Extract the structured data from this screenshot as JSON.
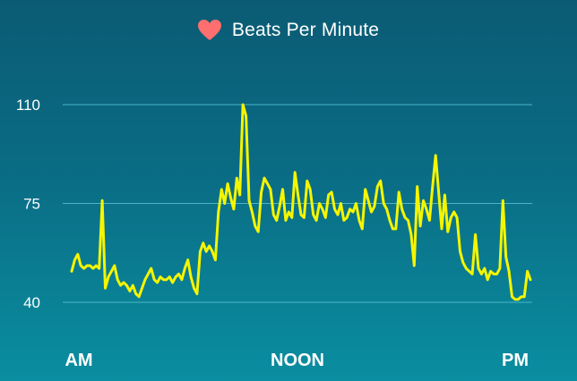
{
  "header": {
    "icon": "heart-icon",
    "title": "Beats Per Minute"
  },
  "colors": {
    "heart": "#ff6f6f",
    "line": "#f5f500",
    "grid": "#4bb6c8",
    "background_top": "#0b5b74",
    "background_bottom": "#0a8ea0"
  },
  "chart_data": {
    "type": "line",
    "title": "Beats Per Minute",
    "xlabel": "",
    "ylabel": "",
    "ylim": [
      40,
      110
    ],
    "yticks": [
      40,
      75,
      110
    ],
    "xtick_labels": [
      "AM",
      "NOON",
      "PM"
    ],
    "grid": true,
    "series": [
      {
        "values": [
          51,
          55,
          57,
          53,
          52,
          53,
          53,
          52,
          53,
          52,
          76,
          45,
          49,
          51,
          53,
          48,
          46,
          47,
          46,
          44,
          46,
          43,
          42,
          45,
          48,
          50,
          52,
          48,
          47,
          49,
          48,
          48,
          49,
          47,
          49,
          50,
          48,
          52,
          55,
          49,
          45,
          43,
          58,
          61,
          58,
          60,
          58,
          55,
          72,
          80,
          75,
          82,
          77,
          73,
          84,
          78,
          110,
          106,
          76,
          72,
          67,
          65,
          79,
          84,
          82,
          80,
          71,
          69,
          74,
          80,
          69,
          72,
          70,
          86,
          78,
          71,
          70,
          83,
          80,
          71,
          69,
          75,
          73,
          70,
          78,
          79,
          73,
          71,
          75,
          69,
          70,
          73,
          72,
          75,
          69,
          66,
          80,
          76,
          72,
          74,
          81,
          83,
          75,
          73,
          69,
          66,
          66,
          79,
          73,
          70,
          69,
          64,
          53,
          81,
          67,
          76,
          73,
          69,
          81,
          92,
          79,
          66,
          78,
          65,
          70,
          72,
          70,
          58,
          54,
          52,
          51,
          50,
          64,
          52,
          50,
          52,
          48,
          51,
          50,
          50,
          52,
          76,
          56,
          51,
          42,
          41,
          41,
          42,
          42,
          51,
          48
        ]
      }
    ]
  }
}
